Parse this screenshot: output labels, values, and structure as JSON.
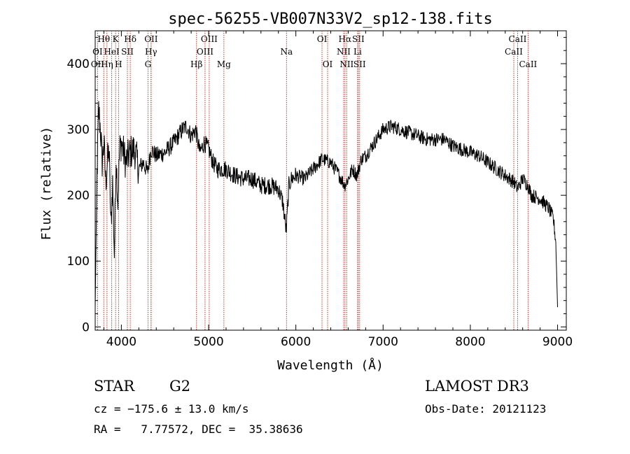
{
  "chart_data": {
    "type": "line",
    "title": "spec-56255-VB007N33V2_sp12-138.fits",
    "xlabel": "Wavelength (Å)",
    "ylabel": "Flux (relative)",
    "xlim": [
      3700,
      9100
    ],
    "ylim": [
      -5,
      450
    ],
    "xticks": [
      {
        "value": 4000,
        "label": "4000"
      },
      {
        "value": 5000,
        "label": "5000"
      },
      {
        "value": 6000,
        "label": "6000"
      },
      {
        "value": 7000,
        "label": "7000"
      },
      {
        "value": 8000,
        "label": "8000"
      },
      {
        "value": 9000,
        "label": "9000"
      }
    ],
    "yticks": [
      {
        "value": 0,
        "label": "0"
      },
      {
        "value": 100,
        "label": "100"
      },
      {
        "value": 200,
        "label": "200"
      },
      {
        "value": 300,
        "label": "300"
      },
      {
        "value": 400,
        "label": "400"
      }
    ],
    "series": [
      {
        "name": "flux",
        "x": [
          3700,
          3720,
          3740,
          3760,
          3780,
          3800,
          3820,
          3840,
          3860,
          3880,
          3900,
          3920,
          3940,
          3960,
          3980,
          4000,
          4050,
          4100,
          4150,
          4200,
          4250,
          4300,
          4340,
          4400,
          4500,
          4600,
          4700,
          4750,
          4800,
          4850,
          4900,
          4950,
          5000,
          5050,
          5100,
          5200,
          5300,
          5400,
          5500,
          5600,
          5700,
          5800,
          5850,
          5890,
          5920,
          5950,
          6000,
          6100,
          6200,
          6300,
          6400,
          6500,
          6560,
          6600,
          6650,
          6700,
          6750,
          6800,
          6900,
          7000,
          7100,
          7200,
          7300,
          7400,
          7500,
          7600,
          7700,
          7800,
          7900,
          8000,
          8100,
          8200,
          8300,
          8400,
          8500,
          8540,
          8600,
          8660,
          8700,
          8800,
          8900,
          8950,
          8980,
          9000
        ],
        "values": [
          30,
          230,
          330,
          300,
          250,
          280,
          220,
          250,
          270,
          150,
          220,
          110,
          260,
          190,
          270,
          280,
          250,
          265,
          270,
          240,
          250,
          235,
          270,
          260,
          265,
          280,
          300,
          305,
          290,
          300,
          265,
          280,
          270,
          250,
          240,
          240,
          230,
          225,
          225,
          215,
          215,
          210,
          190,
          145,
          215,
          225,
          230,
          225,
          240,
          255,
          250,
          230,
          215,
          225,
          240,
          230,
          255,
          260,
          280,
          300,
          305,
          300,
          295,
          290,
          285,
          285,
          285,
          275,
          270,
          265,
          260,
          250,
          240,
          230,
          220,
          210,
          225,
          215,
          200,
          195,
          180,
          165,
          130,
          30
        ]
      }
    ],
    "line_ids": [
      {
        "label": "Hθ",
        "wave": 3798,
        "row": 0
      },
      {
        "label": "K",
        "wave": 3934,
        "row": 0
      },
      {
        "label": "Hδ",
        "wave": 4102,
        "row": 0
      },
      {
        "label": "OII",
        "wave": 4341,
        "row": 0
      },
      {
        "label": "OIII",
        "wave": 5007,
        "row": 0
      },
      {
        "label": "OI",
        "wave": 6300,
        "row": 0
      },
      {
        "label": "Hα",
        "wave": 6563,
        "row": 0
      },
      {
        "label": "SII",
        "wave": 6716,
        "row": 0
      },
      {
        "label": "CaII",
        "wave": 8542,
        "row": 0
      },
      {
        "label": "OI",
        "wave": 3727,
        "row": 1
      },
      {
        "label": "HeI",
        "wave": 3889,
        "row": 1
      },
      {
        "label": "SII",
        "wave": 4069,
        "row": 1
      },
      {
        "label": "Hγ",
        "wave": 4340,
        "row": 1
      },
      {
        "label": "OIII",
        "wave": 4959,
        "row": 1
      },
      {
        "label": "Na",
        "wave": 5893,
        "row": 1
      },
      {
        "label": "NII",
        "wave": 6548,
        "row": 1
      },
      {
        "label": "Li",
        "wave": 6708,
        "row": 1
      },
      {
        "label": "CaII",
        "wave": 8498,
        "row": 1
      },
      {
        "label": "OII",
        "wave": 3727,
        "row": 2
      },
      {
        "label": "Hη",
        "wave": 3835,
        "row": 2
      },
      {
        "label": "H",
        "wave": 3968,
        "row": 2
      },
      {
        "label": "G",
        "wave": 4305,
        "row": 2
      },
      {
        "label": "Hβ",
        "wave": 4861,
        "row": 2
      },
      {
        "label": "Mg",
        "wave": 5175,
        "row": 2
      },
      {
        "label": "OI",
        "wave": 6364,
        "row": 2
      },
      {
        "label": "NII",
        "wave": 6583,
        "row": 2
      },
      {
        "label": "SII",
        "wave": 6731,
        "row": 2
      },
      {
        "label": "CaII",
        "wave": 8662,
        "row": 2
      }
    ]
  },
  "info": {
    "object_class": "STAR",
    "subclass": "G2",
    "survey": "LAMOST DR3",
    "cz": "cz = −175.6 ± 13.0 km/s",
    "obs_date": "Obs-Date: 20121123",
    "coords": "RA =   7.77572, DEC =  35.38636"
  },
  "colors": {
    "line_id": "#c0392b",
    "spectrum": "#000000"
  }
}
